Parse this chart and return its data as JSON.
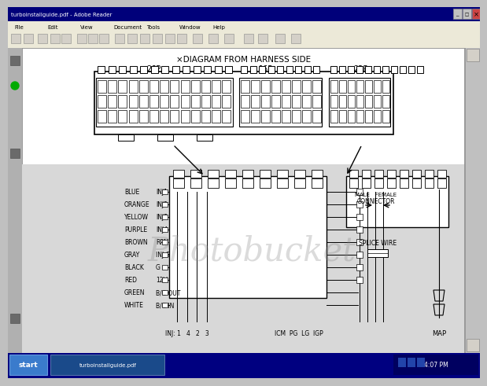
{
  "title_bar": "turboinstallguide.pdf - Adobe Reader",
  "title_bar_color": "#1a1a6e",
  "menu_bg": "#d4d0c8",
  "toolbar_bg": "#d4d0c8",
  "content_bg": "#b8b8b8",
  "page_bg": "#ffffff",
  "diagram_title": "×DIAGRAM FROM HARNESS SIDE",
  "connector_labels": [
    "26P",
    "16P",
    "22P"
  ],
  "wire_labels": [
    [
      "BLUE",
      "INJ1"
    ],
    [
      "ORANGE",
      "INJ2"
    ],
    [
      "YELLOW",
      "INJ3"
    ],
    [
      "PURPLE",
      "INJ4"
    ],
    [
      "BROWN",
      "RPM"
    ],
    [
      "GRAY",
      "INJ G"
    ],
    [
      "BLACK",
      "G"
    ],
    [
      "RED",
      "12V"
    ],
    [
      "GREEN",
      "B/C OUT"
    ],
    [
      "WHITE",
      "B/C IN"
    ]
  ],
  "menu_items": [
    "File",
    "Edit",
    "View",
    "Document",
    "Tools",
    "Window",
    "Help"
  ],
  "right_labels_line1": "MALE   FEMALE",
  "right_labels_line2": "CONNECTOR",
  "splice_label": "SPLICE WIRE",
  "bottom_left": "INJ: 1   4   2   3",
  "bottom_mid": "ICM  PG  LG  IGP",
  "bottom_right": "MAP",
  "taskbar_color": "#000080",
  "taskbar_start": "start",
  "taskbar_file": "turboinstallguide.pdf",
  "scrollbar_color": "#c0c0c0"
}
